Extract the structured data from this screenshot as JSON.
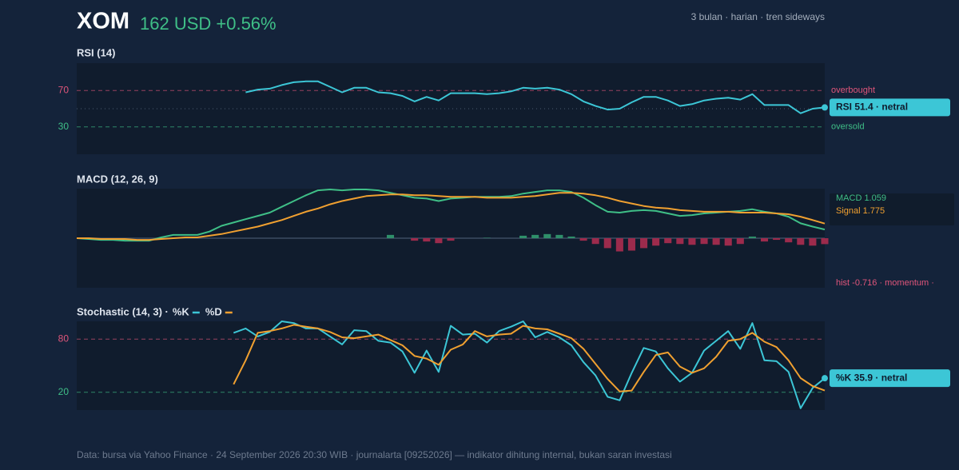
{
  "header": {
    "title": "XOM",
    "price": "162 USD +0.56%",
    "subtitle": "3 bulan · harian · tren sideways"
  },
  "chart_data": [
    {
      "type": "line",
      "title": "RSI (14)",
      "ylim": [
        0,
        100
      ],
      "yticks": [
        70,
        30
      ],
      "tick_colors": [
        "#e0557a",
        "#3fbf87"
      ],
      "refs": [
        {
          "value": 70,
          "label": "overbought"
        },
        {
          "value": 30,
          "label": "oversold"
        }
      ],
      "midline": 50,
      "series": [
        {
          "color": "#3cc6d6",
          "badge": "RSI 51.4 · netral",
          "values": [
            null,
            null,
            null,
            null,
            null,
            null,
            null,
            null,
            null,
            null,
            null,
            null,
            null,
            null,
            68,
            71,
            72,
            76,
            79,
            80,
            80,
            74,
            68,
            73,
            73,
            68,
            67,
            64,
            58,
            63,
            59,
            67,
            67,
            67,
            66,
            67,
            69,
            73,
            72,
            73,
            71,
            66,
            58,
            53,
            49,
            50,
            57,
            63,
            63,
            59,
            53,
            55,
            59,
            61,
            62,
            60,
            66,
            54,
            54,
            54,
            45,
            50,
            51.4
          ]
        }
      ]
    },
    {
      "type": "line",
      "title": "MACD (12, 26, 9)",
      "ylim": [
        -6,
        6
      ],
      "series": [
        {
          "color": "#3fbf87",
          "badge": "MACD 1.059",
          "values": [
            0,
            -0.1,
            -0.2,
            -0.2,
            -0.3,
            -0.3,
            -0.3,
            0.1,
            0.4,
            0.4,
            0.4,
            0.8,
            1.5,
            1.9,
            2.3,
            2.7,
            3.1,
            3.8,
            4.5,
            5.2,
            5.8,
            5.9,
            5.8,
            5.9,
            5.9,
            5.8,
            5.5,
            5.2,
            4.9,
            4.8,
            4.5,
            4.8,
            4.9,
            5.0,
            5.0,
            5.0,
            5.1,
            5.4,
            5.6,
            5.8,
            5.8,
            5.6,
            4.9,
            4.0,
            3.2,
            3.1,
            3.3,
            3.4,
            3.3,
            3.0,
            2.7,
            2.8,
            3.0,
            3.1,
            3.2,
            3.3,
            3.5,
            3.2,
            3.0,
            2.6,
            1.8,
            1.4,
            1.059
          ]
        },
        {
          "color": "#f0a030",
          "badge": "Signal 1.775",
          "values": [
            0,
            0,
            -0.1,
            -0.1,
            -0.1,
            -0.2,
            -0.2,
            -0.1,
            0,
            0.1,
            0.1,
            0.3,
            0.5,
            0.8,
            1.1,
            1.4,
            1.8,
            2.2,
            2.7,
            3.2,
            3.6,
            4.1,
            4.5,
            4.8,
            5.1,
            5.2,
            5.3,
            5.3,
            5.2,
            5.2,
            5.1,
            5.0,
            5.0,
            5.0,
            4.9,
            4.9,
            4.9,
            5.0,
            5.1,
            5.3,
            5.5,
            5.5,
            5.4,
            5.2,
            4.9,
            4.5,
            4.2,
            3.9,
            3.7,
            3.6,
            3.4,
            3.3,
            3.2,
            3.2,
            3.2,
            3.1,
            3.1,
            3.1,
            3.0,
            2.9,
            2.6,
            2.2,
            1.775
          ]
        },
        {
          "type": "bar",
          "color": "#2f8f6a",
          "negative_color": "#9c2b4c",
          "badge_color": "#e0557a",
          "badge": "hist -0.716 · momentum ·",
          "values": [
            0,
            0,
            0,
            0,
            0,
            0,
            0,
            0,
            0,
            0,
            0,
            0,
            0,
            0,
            0,
            0,
            0,
            0,
            0,
            0,
            0,
            0,
            0,
            0,
            0,
            0,
            0.4,
            0,
            -0.3,
            -0.4,
            -0.6,
            -0.3,
            0,
            0,
            0.05,
            0,
            0,
            0.3,
            0.4,
            0.5,
            0.4,
            0.2,
            -0.3,
            -0.7,
            -1.2,
            -1.6,
            -1.5,
            -1.2,
            -0.9,
            -0.6,
            -0.7,
            -0.8,
            -0.7,
            -0.8,
            -0.9,
            -0.7,
            0.2,
            -0.4,
            -0.2,
            -0.5,
            -0.8,
            -0.9,
            -0.716
          ]
        }
      ]
    },
    {
      "type": "line",
      "title": "Stochastic (14, 3) ·",
      "ylim": [
        0,
        100
      ],
      "yticks": [
        80,
        20
      ],
      "tick_colors": [
        "#e0557a",
        "#3fbf87"
      ],
      "series": [
        {
          "name": "%K",
          "color": "#3cc6d6",
          "badge": "%K 35.9 · netral",
          "values": [
            null,
            null,
            null,
            null,
            null,
            null,
            null,
            null,
            null,
            null,
            null,
            null,
            null,
            87,
            92,
            83,
            88,
            100,
            98,
            92,
            92,
            83,
            74,
            90,
            89,
            78,
            76,
            66,
            42,
            67,
            43,
            95,
            85,
            86,
            76,
            89,
            94,
            100,
            82,
            88,
            82,
            73,
            54,
            39,
            15,
            11,
            42,
            70,
            66,
            47,
            32,
            42,
            67,
            78,
            89,
            69,
            98,
            56,
            55,
            43,
            2,
            25,
            35.9
          ]
        },
        {
          "name": "%D",
          "color": "#f0a030",
          "values": [
            null,
            null,
            null,
            null,
            null,
            null,
            null,
            null,
            null,
            null,
            null,
            null,
            null,
            29,
            56,
            87,
            89,
            92,
            96,
            94,
            92,
            88,
            82,
            81,
            83,
            85,
            79,
            73,
            61,
            58,
            51,
            68,
            74,
            89,
            83,
            85,
            86,
            95,
            92,
            91,
            86,
            81,
            69,
            52,
            35,
            21,
            22,
            43,
            62,
            65,
            49,
            42,
            47,
            60,
            78,
            80,
            87,
            77,
            71,
            56,
            36,
            27,
            22
          ]
        }
      ]
    }
  ],
  "footer": "Data: bursa via Yahoo Finance · 24 September 2026 20:30 WIB · journalarta [09252026] — indikator dihitung internal, bukan saran investasi"
}
